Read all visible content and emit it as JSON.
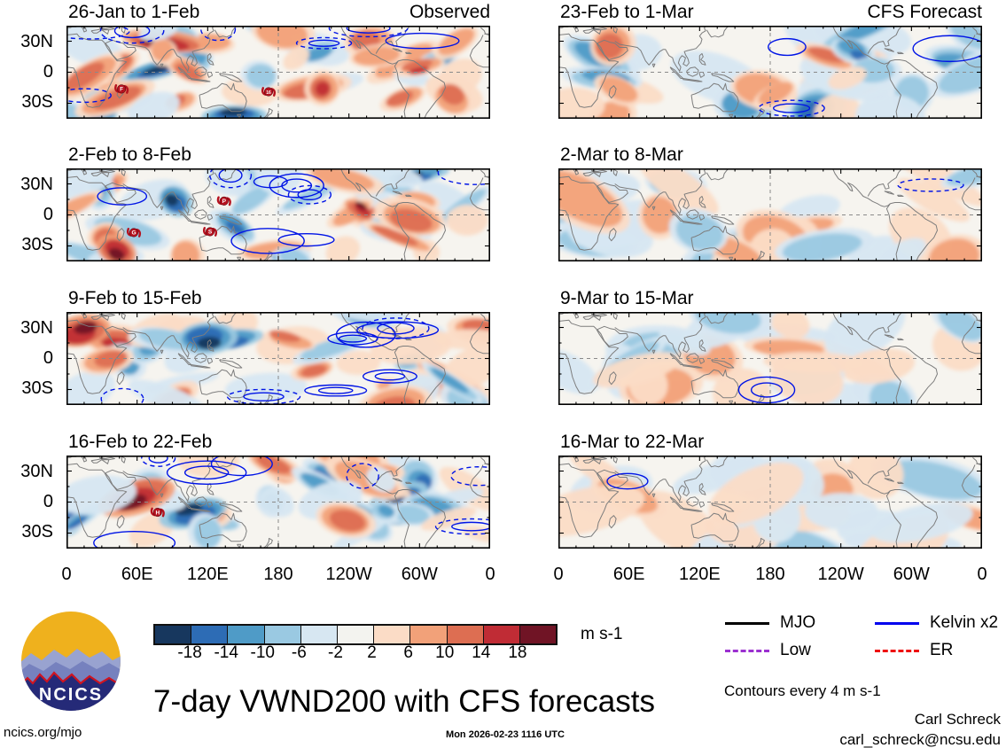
{
  "meta": {
    "site": "ncics.org/mjo",
    "timestamp": "Mon 2026-02-23 1116 UTC",
    "credit_name": "Carl Schreck",
    "credit_email": "carl_schreck@ncsu.edu",
    "logo_text": "NCICS"
  },
  "chart_data": {
    "type": "heatmap",
    "subtype": "filled-contour world maps, 2 columns x 4 rows, equatorial band 45N-45S",
    "title": "7-day VWND200 with CFS forecasts",
    "contour_note": "Contours every 4 m s-1",
    "columns": [
      {
        "header": "Observed"
      },
      {
        "header": "CFS Forecast"
      }
    ],
    "panels": [
      {
        "row": 0,
        "col": 0,
        "title": "26-Jan to 1-Feb",
        "kind": "observed",
        "cyclones": [
          {
            "label": "F",
            "fx": 0.13,
            "fy": 0.68
          },
          {
            "label": "16",
            "fx": 0.477,
            "fy": 0.71
          }
        ]
      },
      {
        "row": 0,
        "col": 1,
        "title": "23-Feb to 1-Mar",
        "kind": "forecast",
        "cyclones": []
      },
      {
        "row": 1,
        "col": 0,
        "title": "2-Feb to 8-Feb",
        "kind": "observed",
        "cyclones": [
          {
            "label": "P",
            "fx": 0.372,
            "fy": 0.35
          },
          {
            "label": "G",
            "fx": 0.159,
            "fy": 0.69
          },
          {
            "label": "S",
            "fx": 0.339,
            "fy": 0.68
          }
        ]
      },
      {
        "row": 1,
        "col": 1,
        "title": "2-Mar to 8-Mar",
        "kind": "forecast",
        "cyclones": []
      },
      {
        "row": 2,
        "col": 0,
        "title": "9-Feb to 15-Feb",
        "kind": "observed",
        "cyclones": []
      },
      {
        "row": 2,
        "col": 1,
        "title": "9-Mar to 15-Mar",
        "kind": "forecast",
        "cyclones": []
      },
      {
        "row": 3,
        "col": 0,
        "title": "16-Feb to 22-Feb",
        "kind": "observed",
        "cyclones": [
          {
            "label": "H",
            "fx": 0.215,
            "fy": 0.61
          }
        ]
      },
      {
        "row": 3,
        "col": 1,
        "title": "16-Mar to 22-Mar",
        "kind": "forecast",
        "cyclones": []
      }
    ],
    "x_axis": {
      "ticks": [
        "0",
        "60E",
        "120E",
        "180",
        "120W",
        "60W",
        "0"
      ]
    },
    "y_axis": {
      "ticks": [
        "30N",
        "0",
        "30S"
      ]
    },
    "colorbar": {
      "unit": "m s-1",
      "levels": [
        -18,
        -14,
        -10,
        -6,
        -2,
        2,
        6,
        10,
        14,
        18
      ],
      "colors": [
        "#17375e",
        "#2d6cb5",
        "#4f9bc7",
        "#9ac9e2",
        "#d7e7f2",
        "#f3f3ef",
        "#fbdcc6",
        "#f2a179",
        "#dd6e52",
        "#c02c35",
        "#701425"
      ]
    },
    "legend": [
      {
        "label": "MJO",
        "color": "#000000",
        "style": "solid"
      },
      {
        "label": "Kelvin x2",
        "color": "#0000ee",
        "style": "solid"
      },
      {
        "label": "Low",
        "color": "#9b30d0",
        "style": "dashed"
      },
      {
        "label": "ER",
        "color": "#ee1111",
        "style": "dashed"
      }
    ]
  }
}
